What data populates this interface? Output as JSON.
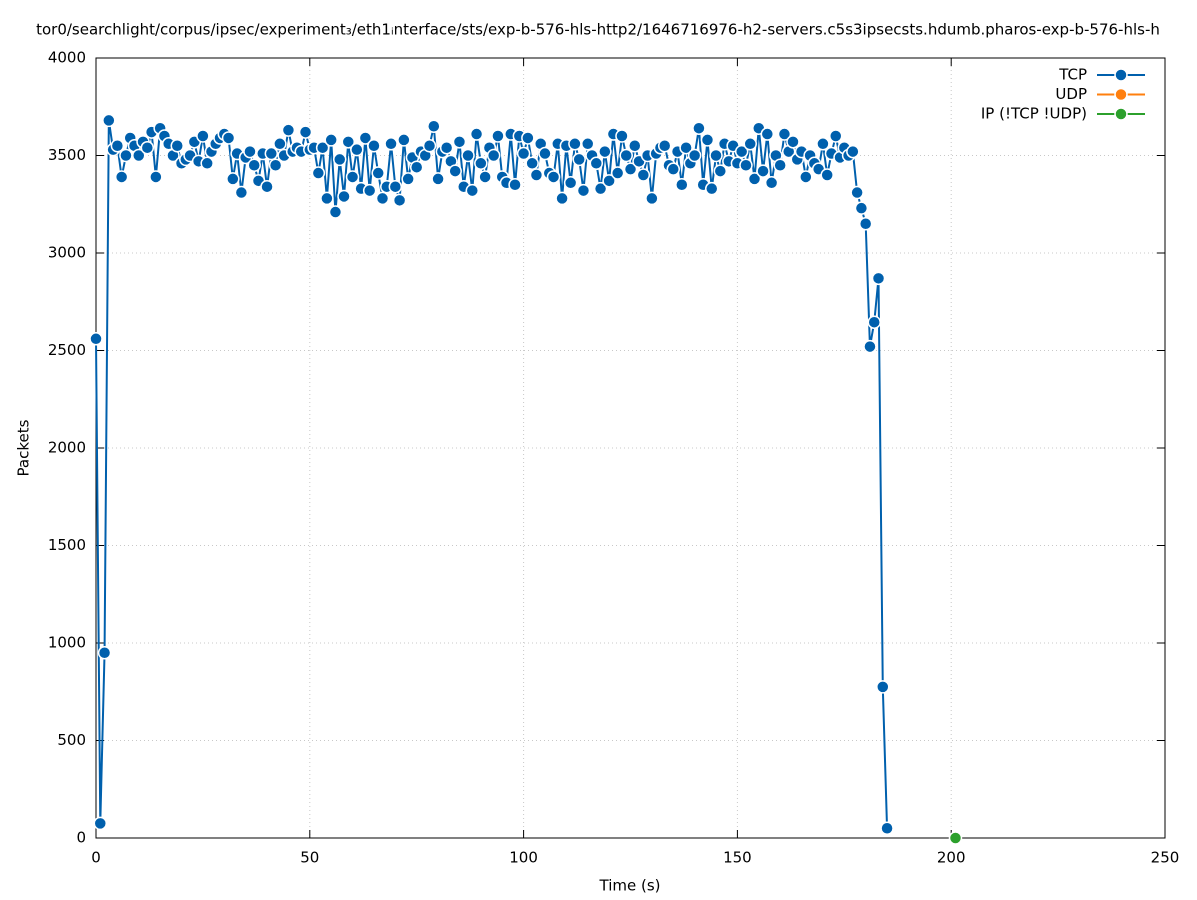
{
  "chart_data": {
    "type": "line",
    "title": "tor0/searchlight/corpus/ipsec/experiment₃/eth1ᵢnterface/sts/exp-b-576-hls-http2/1646716976-h2-servers.c5s3ipsecsts.hdumb.pharos-exp-b-576-hls-h",
    "x_label": "Time (s)",
    "y_label": "Packets",
    "xlim": [
      0,
      250
    ],
    "xticks": [
      0,
      50,
      100,
      150,
      200,
      250
    ],
    "ylim": [
      0,
      4000
    ],
    "yticks": [
      0,
      500,
      1000,
      1500,
      2000,
      2500,
      3000,
      3500,
      4000
    ],
    "grid": true,
    "legend": "top-right",
    "series": [
      {
        "name": "TCP",
        "color": "#0060ad",
        "x": [
          0,
          1,
          2,
          3,
          4,
          5,
          6,
          7,
          8,
          9,
          10,
          11,
          12,
          13,
          14,
          15,
          16,
          17,
          18,
          19,
          20,
          21,
          22,
          23,
          24,
          25,
          26,
          27,
          28,
          29,
          30,
          31,
          32,
          33,
          34,
          35,
          36,
          37,
          38,
          39,
          40,
          41,
          42,
          43,
          44,
          45,
          46,
          47,
          48,
          49,
          50,
          51,
          52,
          53,
          54,
          55,
          56,
          57,
          58,
          59,
          60,
          61,
          62,
          63,
          64,
          65,
          66,
          67,
          68,
          69,
          70,
          71,
          72,
          73,
          74,
          75,
          76,
          77,
          78,
          79,
          80,
          81,
          82,
          83,
          84,
          85,
          86,
          87,
          88,
          89,
          90,
          91,
          92,
          93,
          94,
          95,
          96,
          97,
          98,
          99,
          100,
          101,
          102,
          103,
          104,
          105,
          106,
          107,
          108,
          109,
          110,
          111,
          112,
          113,
          114,
          115,
          116,
          117,
          118,
          119,
          120,
          121,
          122,
          123,
          124,
          125,
          126,
          127,
          128,
          129,
          130,
          131,
          132,
          133,
          134,
          135,
          136,
          137,
          138,
          139,
          140,
          141,
          142,
          143,
          144,
          145,
          146,
          147,
          148,
          149,
          150,
          151,
          152,
          153,
          154,
          155,
          156,
          157,
          158,
          159,
          160,
          161,
          162,
          163,
          164,
          165,
          166,
          167,
          168,
          169,
          170,
          171,
          172,
          173,
          174,
          175,
          176,
          177,
          178,
          179,
          180,
          181,
          182,
          183,
          184,
          185
        ],
        "values": [
          2560,
          75,
          950,
          3680,
          3530,
          3550,
          3390,
          3500,
          3590,
          3550,
          3500,
          3570,
          3540,
          3620,
          3390,
          3640,
          3600,
          3560,
          3500,
          3550,
          3460,
          3480,
          3500,
          3570,
          3470,
          3600,
          3460,
          3520,
          3560,
          3590,
          3610,
          3590,
          3380,
          3510,
          3310,
          3490,
          3520,
          3450,
          3370,
          3510,
          3340,
          3510,
          3450,
          3560,
          3500,
          3630,
          3520,
          3540,
          3520,
          3620,
          3530,
          3540,
          3410,
          3540,
          3280,
          3580,
          3210,
          3480,
          3290,
          3570,
          3390,
          3530,
          3330,
          3590,
          3320,
          3550,
          3410,
          3280,
          3340,
          3560,
          3340,
          3270,
          3580,
          3380,
          3490,
          3440,
          3520,
          3500,
          3550,
          3650,
          3380,
          3520,
          3540,
          3470,
          3420,
          3570,
          3340,
          3500,
          3320,
          3610,
          3460,
          3390,
          3540,
          3500,
          3600,
          3390,
          3360,
          3610,
          3350,
          3600,
          3510,
          3590,
          3460,
          3400,
          3560,
          3510,
          3410,
          3390,
          3560,
          3280,
          3550,
          3360,
          3560,
          3480,
          3320,
          3560,
          3500,
          3460,
          3330,
          3520,
          3370,
          3610,
          3410,
          3600,
          3500,
          3430,
          3550,
          3470,
          3400,
          3500,
          3280,
          3510,
          3540,
          3550,
          3450,
          3430,
          3520,
          3350,
          3540,
          3460,
          3500,
          3640,
          3350,
          3580,
          3330,
          3500,
          3420,
          3560,
          3470,
          3550,
          3460,
          3520,
          3450,
          3560,
          3380,
          3640,
          3420,
          3610,
          3360,
          3500,
          3450,
          3610,
          3520,
          3570,
          3480,
          3520,
          3390,
          3500,
          3460,
          3430,
          3560,
          3400,
          3510,
          3600,
          3490,
          3540,
          3500,
          3520,
          3310,
          3230,
          3150,
          2520,
          2645,
          2870,
          775,
          50
        ]
      },
      {
        "name": "UDP",
        "color": "#ff7f0e",
        "x": [],
        "values": []
      },
      {
        "name": "IP (!TCP  !UDP)",
        "color": "#2ca02c",
        "x": [
          201
        ],
        "values": [
          0
        ]
      }
    ]
  }
}
